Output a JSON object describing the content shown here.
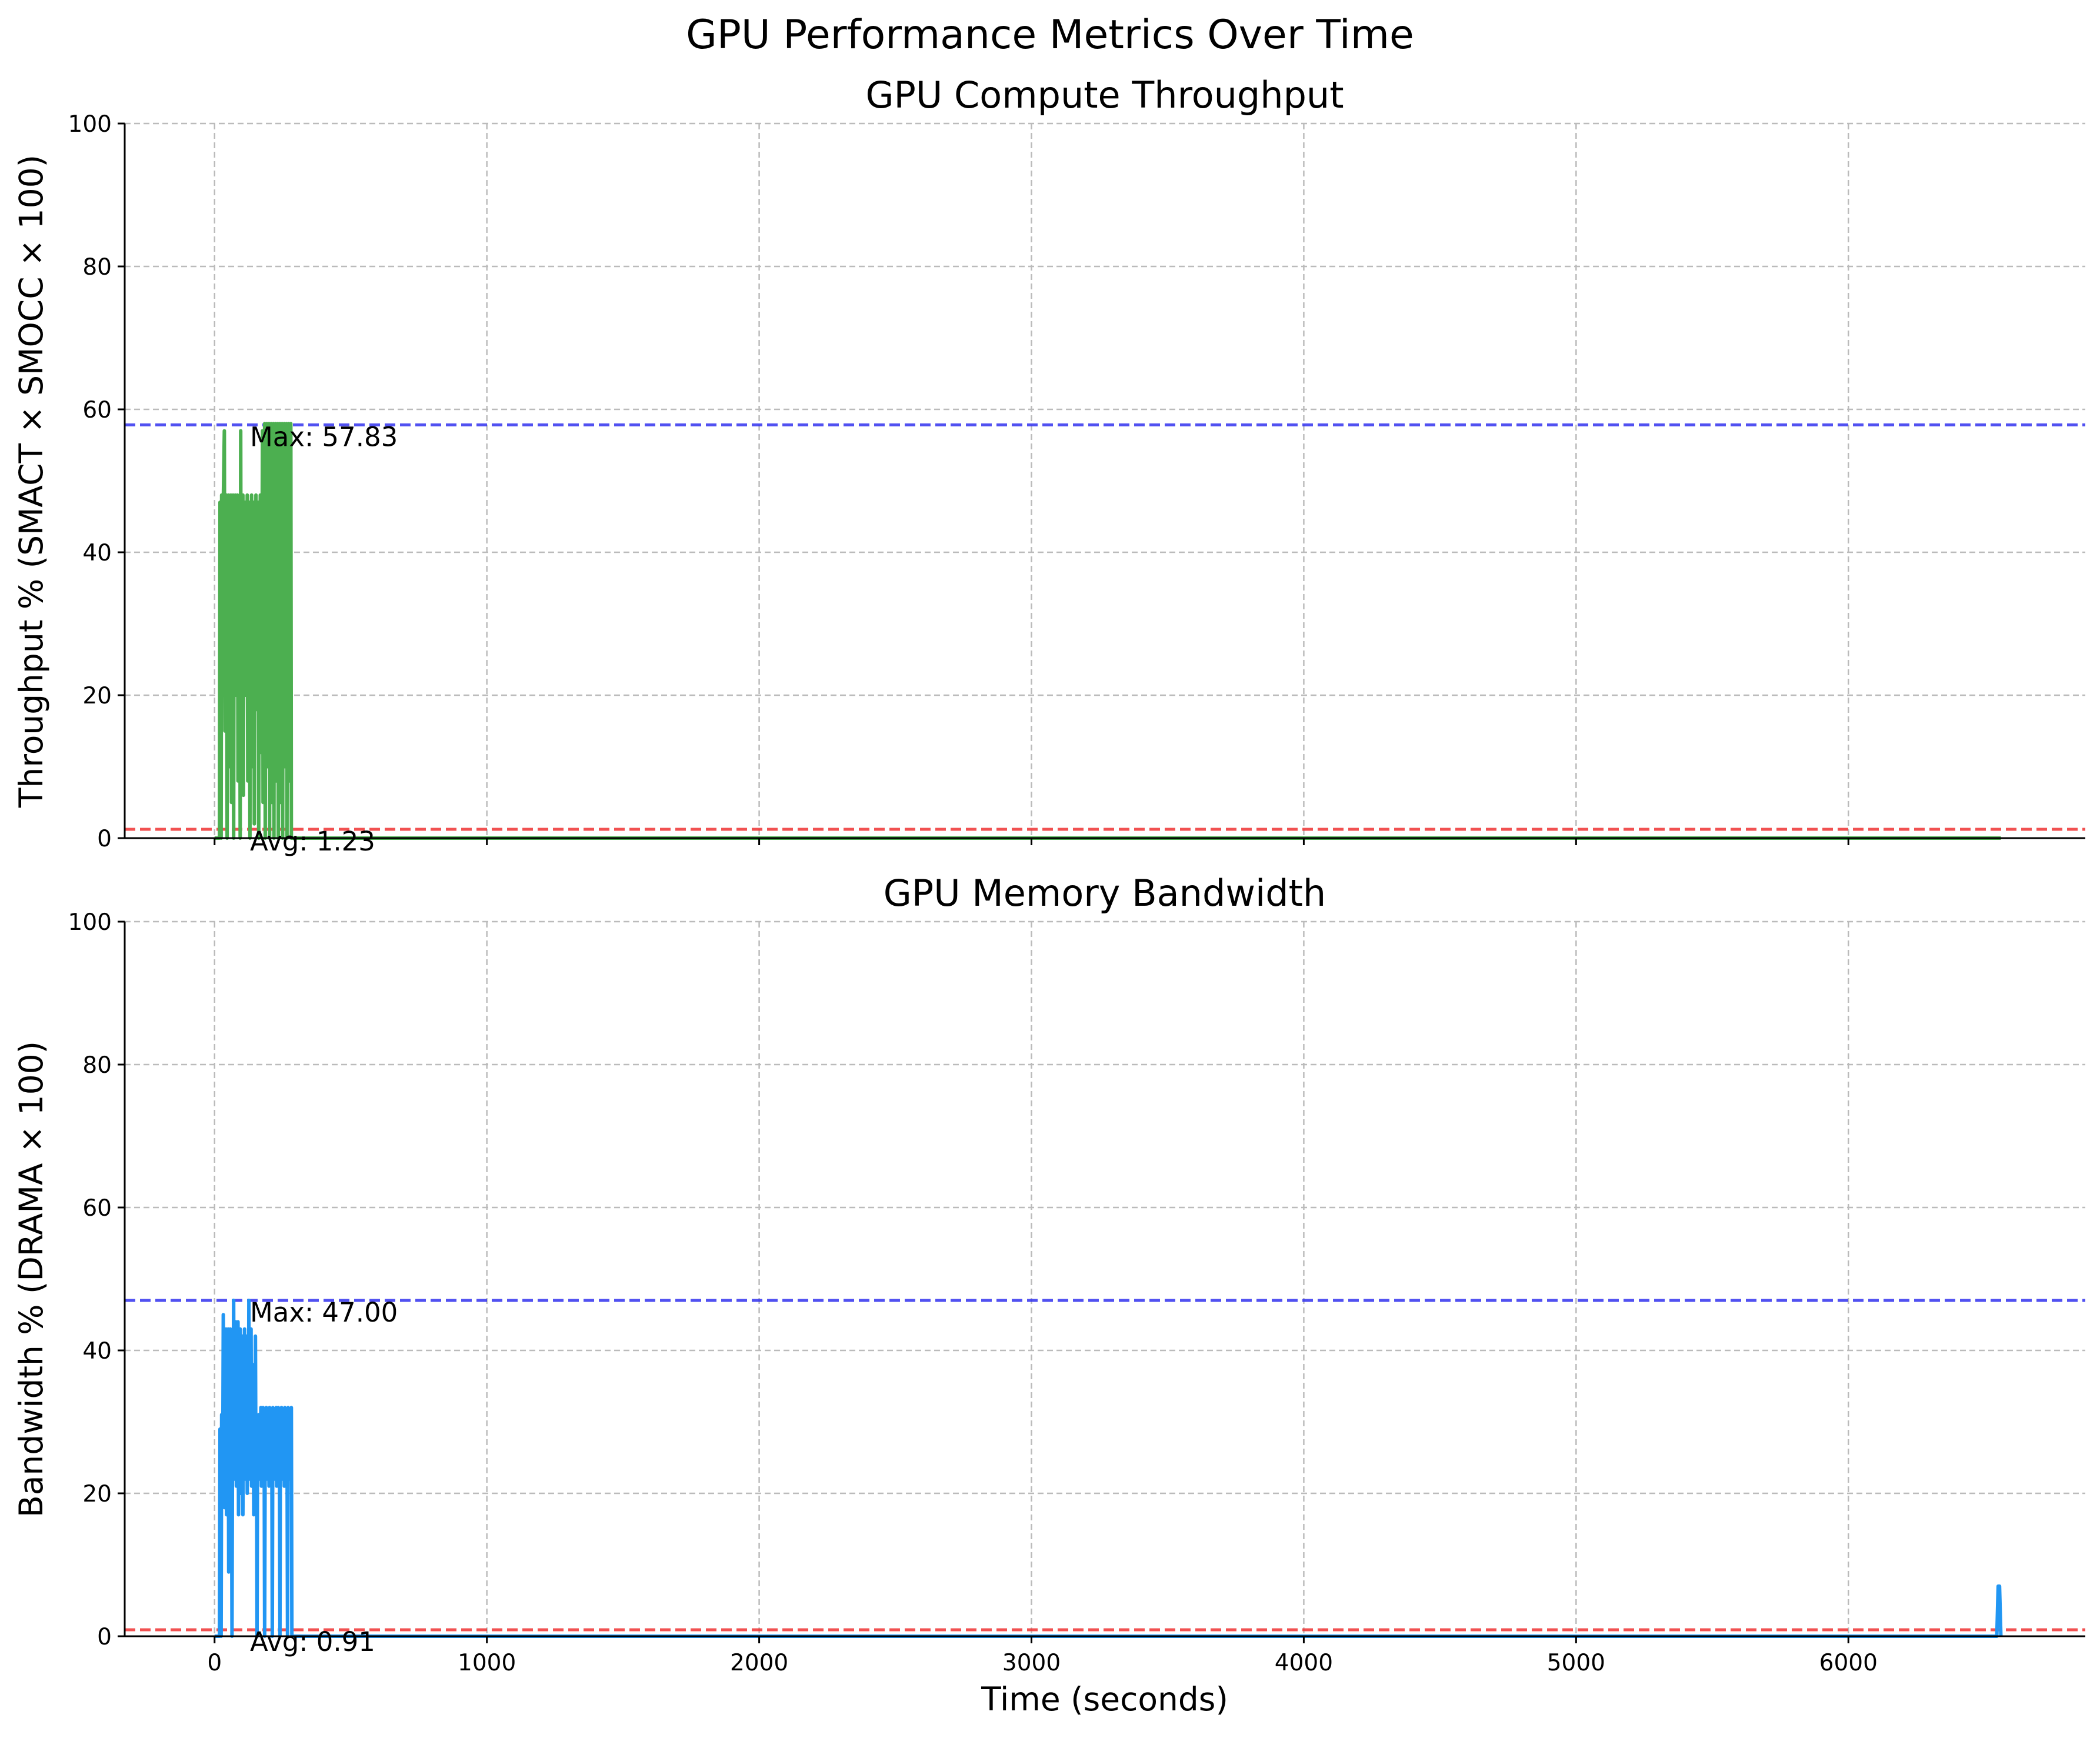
{
  "figure_title": "GPU Performance Metrics Over Time",
  "colors": {
    "throughput_line": "#4caf50",
    "bandwidth_line": "#2196f3",
    "max_line": "#3333ee",
    "avg_line": "#ee3333",
    "grid": "#bbbbbb"
  },
  "chart_data": [
    {
      "type": "line",
      "title": "GPU Compute Throughput",
      "xlabel": "",
      "ylabel": "Throughput % (SMACT × SMOCC × 100)",
      "xlim": [
        -330,
        6870
      ],
      "ylim": [
        0,
        100
      ],
      "xticks": [
        0,
        1000,
        2000,
        3000,
        4000,
        5000,
        6000
      ],
      "xtick_labels": [
        "",
        "",
        "",
        "",
        "",
        "",
        ""
      ],
      "yticks": [
        0,
        20,
        40,
        60,
        80,
        100
      ],
      "ytick_labels": [
        "0",
        "20",
        "40",
        "60",
        "80",
        "100"
      ],
      "grid": true,
      "series": [
        {
          "color": "#4caf50",
          "x": [
            0,
            10,
            18,
            20,
            24,
            26,
            30,
            32,
            36,
            38,
            40,
            42,
            44,
            46,
            48,
            50,
            52,
            54,
            56,
            58,
            60,
            62,
            64,
            66,
            68,
            70,
            72,
            74,
            76,
            78,
            80,
            82,
            84,
            86,
            88,
            90,
            92,
            94,
            96,
            98,
            100,
            102,
            104,
            106,
            108,
            110,
            112,
            114,
            116,
            118,
            120,
            122,
            124,
            126,
            128,
            130,
            132,
            134,
            136,
            138,
            140,
            142,
            144,
            146,
            148,
            150,
            152,
            154,
            156,
            158,
            160,
            162,
            164,
            166,
            168,
            170,
            172,
            174,
            176,
            178,
            180,
            182,
            184,
            186,
            188,
            190,
            192,
            194,
            196,
            198,
            200,
            202,
            204,
            206,
            208,
            210,
            212,
            214,
            216,
            218,
            220,
            222,
            224,
            226,
            228,
            230,
            232,
            234,
            236,
            238,
            240,
            242,
            244,
            246,
            248,
            250,
            252,
            254,
            256,
            258,
            260,
            262,
            264,
            266,
            268,
            270,
            272,
            274,
            276,
            278,
            280,
            282,
            284,
            290,
            400,
            1000,
            2000,
            3000,
            4000,
            5000,
            6000,
            6560
          ],
          "values": [
            0,
            0,
            0,
            47,
            0,
            48,
            20,
            47,
            57,
            15,
            47,
            33,
            48,
            0,
            47,
            35,
            48,
            10,
            47,
            33,
            48,
            5,
            47,
            40,
            48,
            0,
            47,
            33,
            48,
            20,
            47,
            36,
            48,
            8,
            47,
            33,
            48,
            0,
            57,
            15,
            47,
            33,
            48,
            6,
            47,
            33,
            47,
            20,
            47,
            32,
            48,
            8,
            47,
            33,
            47,
            0,
            47,
            34,
            48,
            10,
            47,
            33,
            47,
            2,
            47,
            33,
            48,
            18,
            47,
            33,
            47,
            0,
            47,
            34,
            48,
            12,
            47,
            33,
            57,
            5,
            57,
            33,
            58,
            0,
            57,
            35,
            58,
            10,
            57,
            33,
            58,
            0,
            57,
            40,
            58,
            5,
            57,
            33,
            58,
            0,
            57,
            33,
            58,
            8,
            57,
            33,
            58,
            0,
            57,
            40,
            58,
            5,
            57,
            33,
            58,
            0,
            57,
            33,
            58,
            10,
            57,
            33,
            58,
            0,
            57,
            35,
            58,
            8,
            57,
            33,
            58,
            0,
            0,
            0,
            0,
            0,
            0,
            0,
            0,
            0,
            0,
            0
          ]
        }
      ],
      "reference_lines": [
        {
          "kind": "max",
          "value": 57.83,
          "label": "Max: 57.83",
          "label_x": 130,
          "color": "#3333ee"
        },
        {
          "kind": "avg",
          "value": 1.23,
          "label": "Avg: 1.23",
          "label_x": 130,
          "color": "#ee3333"
        }
      ]
    },
    {
      "type": "line",
      "title": "GPU Memory Bandwidth",
      "xlabel": "Time (seconds)",
      "ylabel": "Bandwidth % (DRAMA × 100)",
      "xlim": [
        -330,
        6870
      ],
      "ylim": [
        0,
        100
      ],
      "xticks": [
        0,
        1000,
        2000,
        3000,
        4000,
        5000,
        6000
      ],
      "xtick_labels": [
        "0",
        "1000",
        "2000",
        "3000",
        "4000",
        "5000",
        "6000"
      ],
      "yticks": [
        0,
        20,
        40,
        60,
        80,
        100
      ],
      "ytick_labels": [
        "0",
        "20",
        "40",
        "60",
        "80",
        "100"
      ],
      "grid": true,
      "series": [
        {
          "color": "#2196f3",
          "x": [
            0,
            10,
            18,
            20,
            24,
            26,
            30,
            32,
            36,
            38,
            40,
            42,
            44,
            46,
            48,
            50,
            52,
            54,
            56,
            58,
            60,
            62,
            64,
            66,
            68,
            70,
            72,
            74,
            76,
            78,
            80,
            82,
            84,
            86,
            88,
            90,
            92,
            94,
            96,
            98,
            100,
            102,
            104,
            106,
            108,
            110,
            112,
            114,
            116,
            118,
            120,
            122,
            124,
            126,
            128,
            130,
            132,
            134,
            136,
            138,
            140,
            142,
            144,
            146,
            148,
            150,
            152,
            154,
            156,
            158,
            160,
            162,
            164,
            166,
            168,
            170,
            172,
            174,
            176,
            178,
            180,
            182,
            184,
            186,
            188,
            190,
            192,
            194,
            196,
            198,
            200,
            202,
            204,
            206,
            208,
            210,
            212,
            214,
            216,
            218,
            220,
            222,
            224,
            226,
            228,
            230,
            232,
            234,
            236,
            238,
            240,
            242,
            244,
            246,
            248,
            250,
            252,
            254,
            256,
            258,
            260,
            262,
            264,
            266,
            268,
            270,
            272,
            274,
            276,
            278,
            280,
            282,
            284,
            290,
            400,
            1000,
            2000,
            3000,
            4000,
            5000,
            6000,
            6540,
            6545,
            6550,
            6555,
            6560
          ],
          "values": [
            0,
            0,
            0,
            29,
            0,
            31,
            22,
            45,
            18,
            30,
            25,
            43,
            17,
            29,
            24,
            43,
            9,
            30,
            26,
            43,
            22,
            30,
            0,
            29,
            28,
            47,
            22,
            30,
            25,
            44,
            21,
            29,
            27,
            44,
            17,
            30,
            26,
            43,
            20,
            30,
            28,
            42,
            17,
            30,
            25,
            43,
            22,
            29,
            27,
            42,
            20,
            30,
            26,
            47,
            22,
            30,
            25,
            43,
            21,
            29,
            27,
            38,
            17,
            30,
            26,
            42,
            22,
            30,
            0,
            29,
            25,
            31,
            22,
            30,
            27,
            32,
            21,
            31,
            26,
            32,
            22,
            30,
            0,
            31,
            25,
            32,
            22,
            30,
            27,
            31,
            21,
            32,
            26,
            31,
            22,
            30,
            0,
            32,
            25,
            31,
            22,
            30,
            27,
            32,
            21,
            31,
            26,
            32,
            22,
            30,
            0,
            31,
            25,
            32,
            22,
            30,
            27,
            31,
            21,
            32,
            26,
            31,
            22,
            30,
            0,
            32,
            25,
            31,
            22,
            30,
            27,
            32,
            0,
            0,
            0,
            0,
            0,
            0,
            0,
            0,
            0,
            0,
            0,
            7,
            7,
            0
          ]
        }
      ],
      "reference_lines": [
        {
          "kind": "max",
          "value": 47.0,
          "label": "Max: 47.00",
          "label_x": 130,
          "color": "#3333ee"
        },
        {
          "kind": "avg",
          "value": 0.91,
          "label": "Avg: 0.91",
          "label_x": 130,
          "color": "#ee3333"
        }
      ]
    }
  ]
}
